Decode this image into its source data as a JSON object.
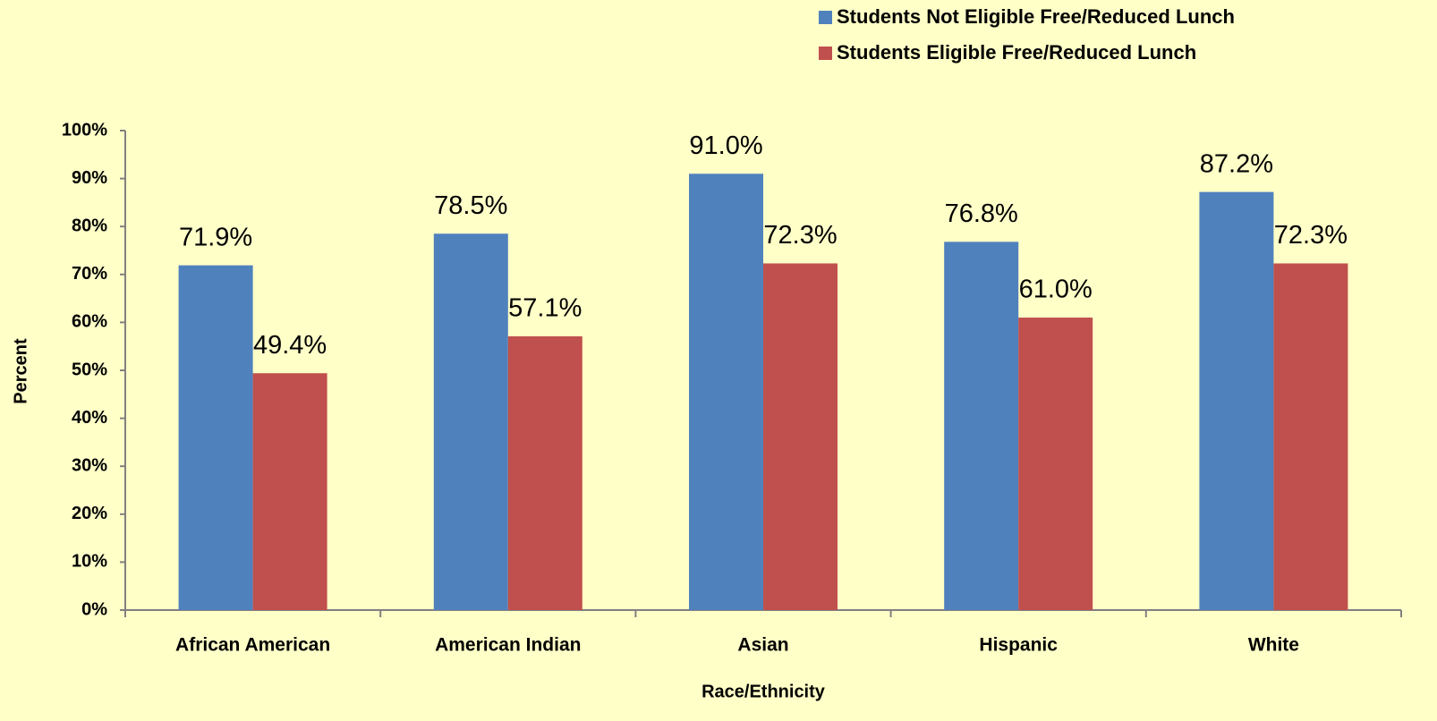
{
  "chart_data": {
    "type": "bar",
    "x_label": "Race/Ethnicity",
    "y_label": "Percent",
    "categories": [
      "African American",
      "American Indian",
      "Asian",
      "Hispanic",
      "White"
    ],
    "series": [
      {
        "name": "Students Not Eligible Free/Reduced Lunch",
        "color": "#4f81bd",
        "values": [
          71.9,
          78.5,
          91.0,
          76.8,
          87.2
        ],
        "value_labels": [
          "71.9%",
          "78.5%",
          "91.0%",
          "76.8%",
          "87.2%"
        ]
      },
      {
        "name": "Students Eligible Free/Reduced Lunch",
        "color": "#c0504d",
        "values": [
          49.4,
          57.1,
          72.3,
          61.0,
          72.3
        ],
        "value_labels": [
          "49.4%",
          "57.1%",
          "72.3%",
          "61.0%",
          "72.3%"
        ]
      }
    ],
    "ylim": [
      0,
      100
    ],
    "yticks": [
      {
        "value": 0,
        "label": "0%"
      },
      {
        "value": 10,
        "label": "10%"
      },
      {
        "value": 20,
        "label": "20%"
      },
      {
        "value": 30,
        "label": "30%"
      },
      {
        "value": 40,
        "label": "40%"
      },
      {
        "value": 50,
        "label": "50%"
      },
      {
        "value": 60,
        "label": "60%"
      },
      {
        "value": 70,
        "label": "70%"
      },
      {
        "value": 80,
        "label": "80%"
      },
      {
        "value": 90,
        "label": "90%"
      },
      {
        "value": 100,
        "label": "100%"
      }
    ],
    "legend": "top-right",
    "grid": false
  }
}
